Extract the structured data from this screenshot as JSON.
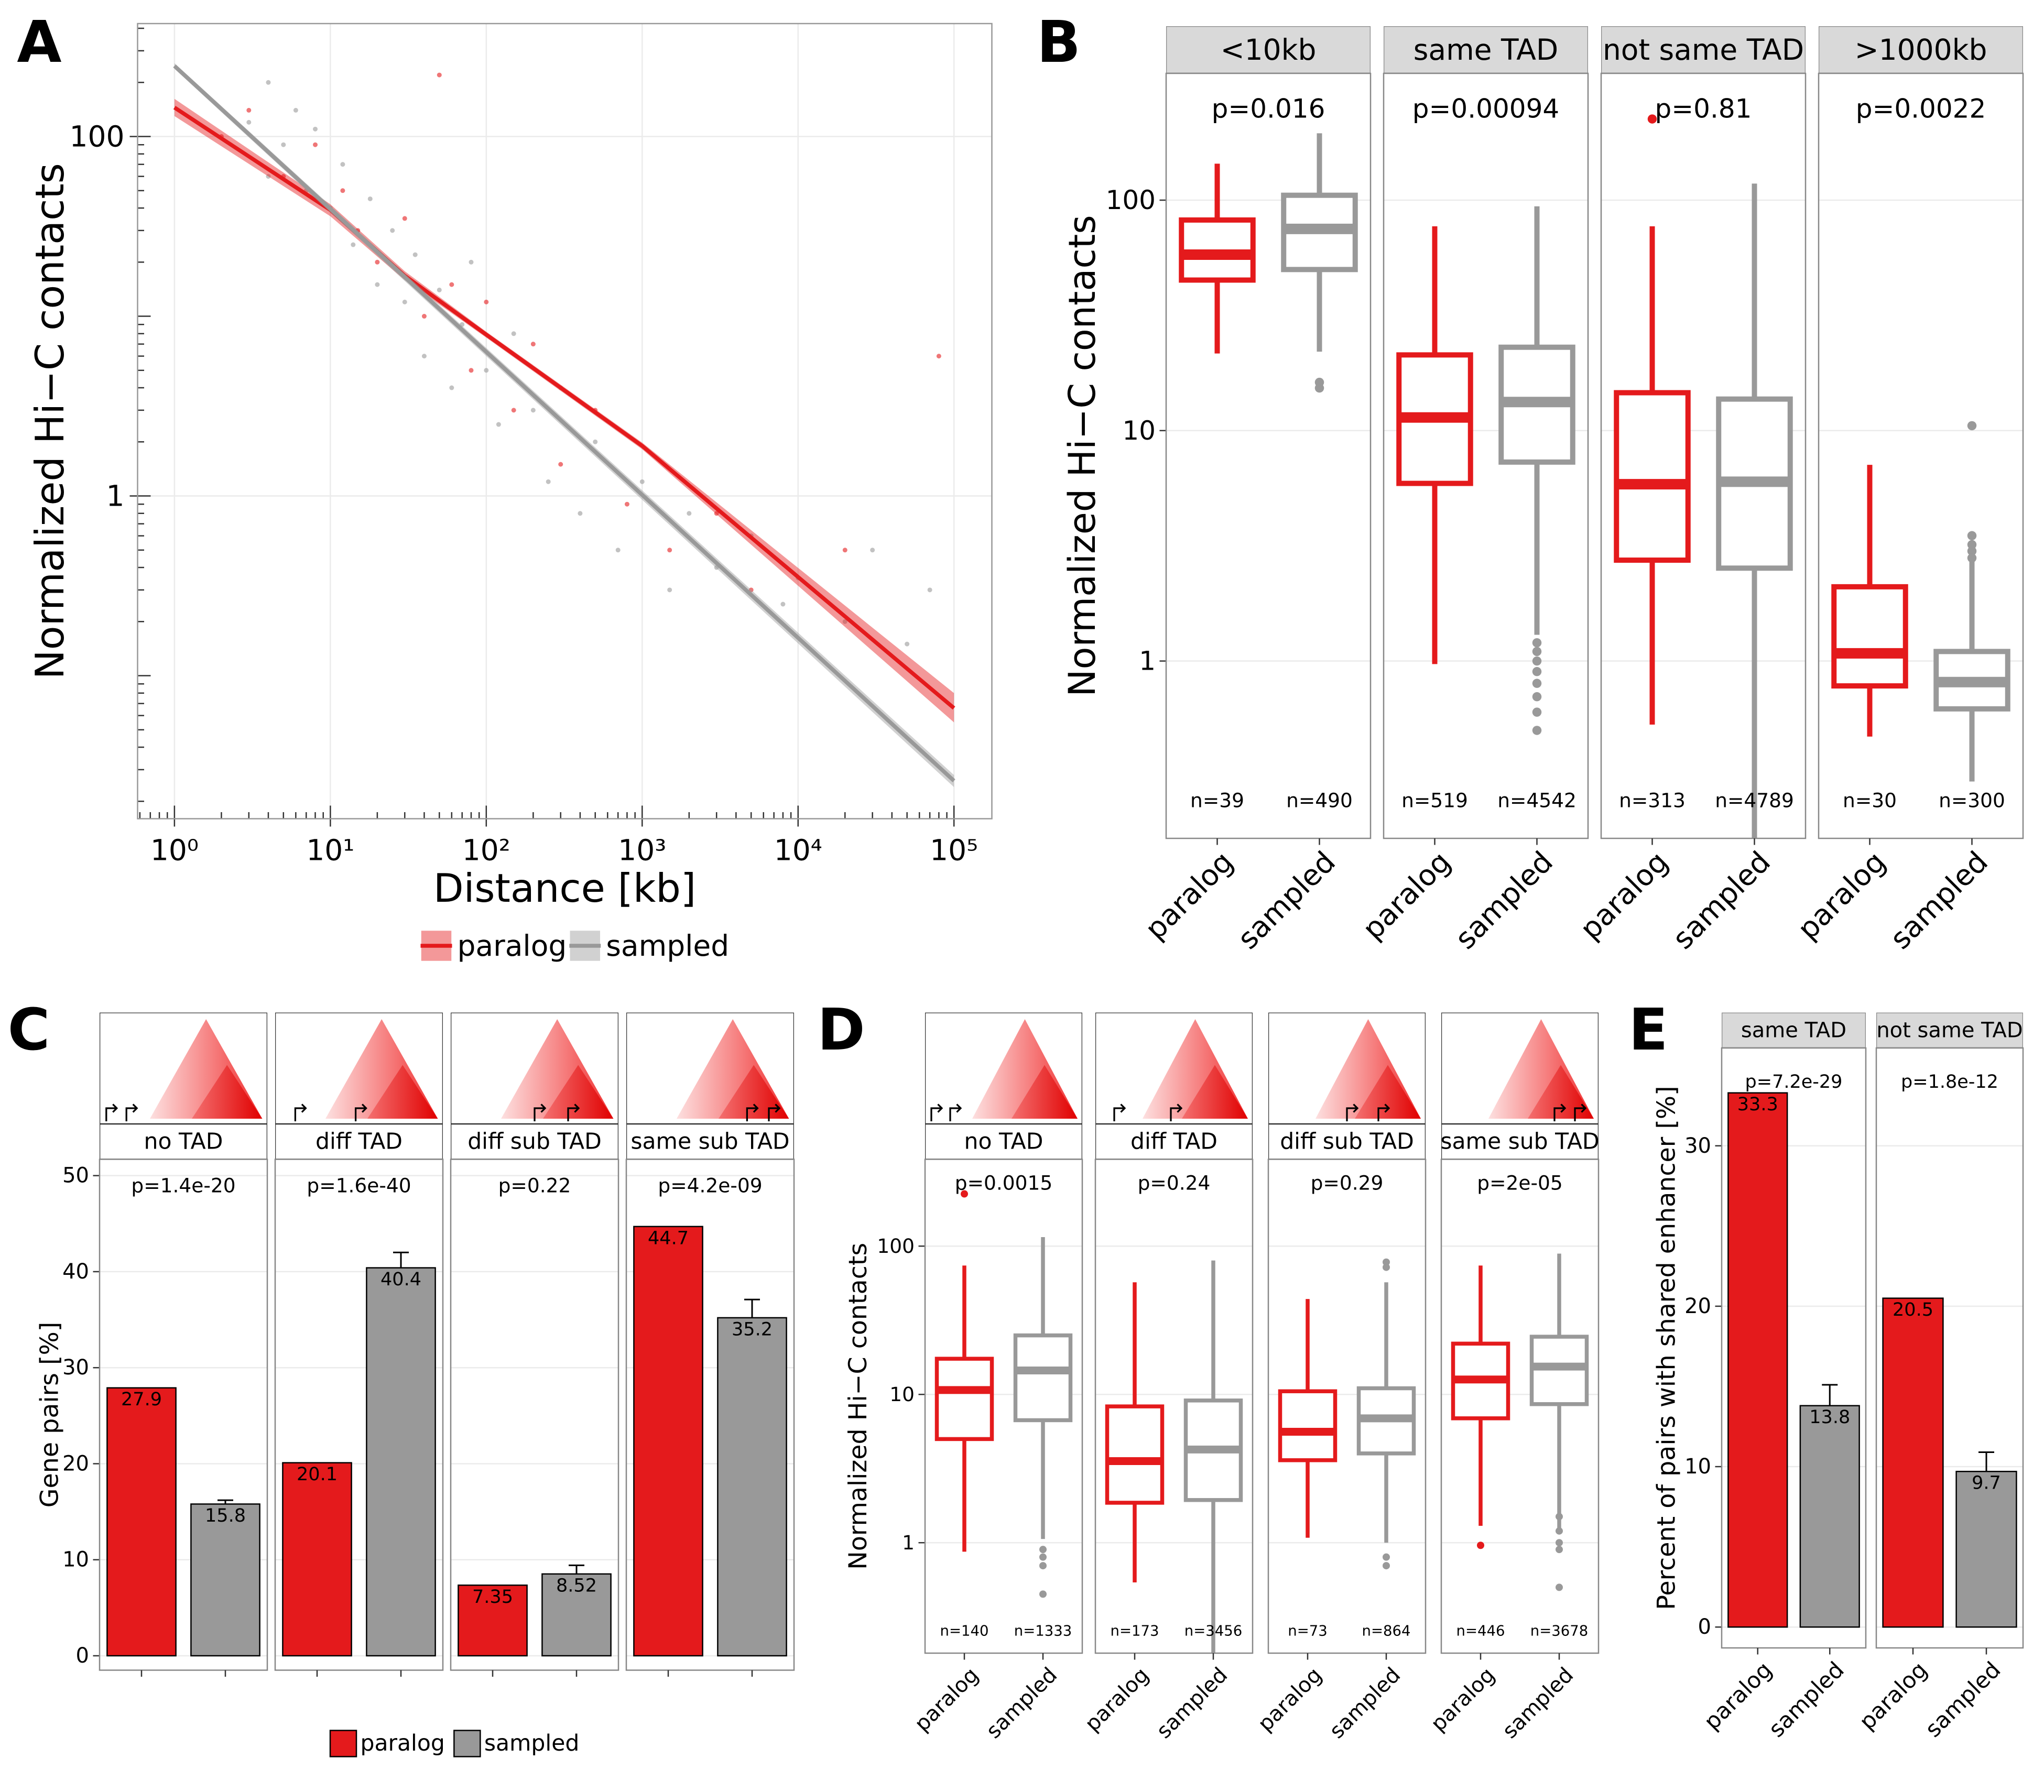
{
  "chart_data": [
    {
      "type": "scatter",
      "panel_label": "A",
      "xlabel": "Distance [kb]",
      "ylabel": "Normalized Hi−C contacts",
      "log_x": true,
      "log_y": true,
      "grid": true,
      "xlim": [
        0.58,
        175000
      ],
      "ylim": [
        0.016,
        425
      ],
      "xticks": [
        {
          "value": 1,
          "label": "10⁰"
        },
        {
          "value": 10,
          "label": "10¹"
        },
        {
          "value": 100,
          "label": "10²"
        },
        {
          "value": 1000,
          "label": "10³"
        },
        {
          "value": 10000,
          "label": "10⁴"
        },
        {
          "value": 100000,
          "label": "10⁵"
        }
      ],
      "yticks": [
        1,
        100
      ],
      "legend": "bottom",
      "series": [
        {
          "name": "paralog",
          "color": "#e41a1c",
          "fit_x": [
            1,
            10,
            30,
            100,
            1000,
            100000
          ],
          "fit_values": [
            145,
            39,
            16.8,
            7.9,
            1.9,
            0.066
          ],
          "band_low": [
            130,
            36,
            15.9,
            7.6,
            1.82,
            0.055
          ],
          "band_high": [
            162,
            42,
            17.8,
            8.2,
            1.98,
            0.08
          ],
          "x": [
            2,
            3,
            5,
            8,
            12,
            15,
            20,
            30,
            40,
            50,
            60,
            80,
            100,
            150,
            200,
            300,
            500,
            800,
            1500,
            3000,
            5000,
            20000,
            80000
          ],
          "values": [
            100,
            140,
            60,
            90,
            50,
            30,
            20,
            35,
            10,
            220,
            15,
            5,
            12,
            3,
            7,
            1.5,
            3,
            0.9,
            0.5,
            0.8,
            0.3,
            0.5,
            6
          ]
        },
        {
          "name": "sampled",
          "color": "#999999",
          "fit_x": [
            1,
            100000
          ],
          "fit_values": [
            247,
            0.026
          ],
          "band_low": [
            238,
            0.024
          ],
          "band_high": [
            256,
            0.028
          ],
          "x": [
            3,
            4,
            4,
            5,
            6,
            7,
            8,
            10,
            12,
            14,
            18,
            20,
            25,
            30,
            35,
            40,
            50,
            60,
            70,
            80,
            100,
            120,
            150,
            200,
            250,
            300,
            400,
            500,
            700,
            1000,
            1500,
            2000,
            3000,
            5000,
            8000,
            10000,
            20000,
            30000,
            50000,
            70000
          ],
          "values": [
            120,
            60,
            200,
            90,
            140,
            50,
            110,
            40,
            70,
            25,
            45,
            15,
            30,
            12,
            22,
            6,
            14,
            4,
            9,
            20,
            5,
            2.5,
            8,
            3,
            1.2,
            4,
            0.8,
            2,
            0.5,
            1.2,
            0.3,
            0.8,
            0.4,
            0.6,
            0.25,
            0.35,
            0.2,
            0.5,
            0.15,
            0.3
          ]
        }
      ]
    },
    {
      "type": "box",
      "panel_label": "B",
      "ylabel": "Normalized Hi−C contacts",
      "log_y": true,
      "grid": true,
      "ylim": [
        0.17,
        355
      ],
      "yticks": [
        1,
        10,
        100
      ],
      "x_labels": true,
      "series": [
        {
          "name": "paralog",
          "color": "#e41a1c"
        },
        {
          "name": "sampled",
          "color": "#999999"
        }
      ],
      "facets": [
        {
          "name": "<10kb",
          "p_label": "p=0.016",
          "boxes": [
            {
              "whislo": 21.6,
              "q1": 45,
              "med": 58,
              "q3": 82,
              "whishi": 144,
              "outliers": [],
              "n_label": "n=39"
            },
            {
              "whislo": 22,
              "q1": 50,
              "med": 75,
              "q3": 105,
              "whishi": 195,
              "outliers": [
                16.2,
                15.3
              ],
              "n_label": "n=490"
            }
          ]
        },
        {
          "name": "same TAD",
          "p_label": "p=0.00094",
          "boxes": [
            {
              "whislo": 0.97,
              "q1": 5.9,
              "med": 11.4,
              "q3": 21.3,
              "whishi": 77,
              "outliers": [],
              "n_label": "n=519"
            },
            {
              "whislo": 1.3,
              "q1": 7.3,
              "med": 13.3,
              "q3": 23,
              "whishi": 94,
              "outliers": [
                1.2,
                1.1,
                1.0,
                0.9,
                0.8,
                0.7,
                0.6,
                0.5
              ],
              "n_label": "n=4542"
            }
          ]
        },
        {
          "name": "not same TAD",
          "p_label": "p=0.81",
          "boxes": [
            {
              "whislo": 0.53,
              "q1": 2.74,
              "med": 5.85,
              "q3": 14.6,
              "whishi": 77,
              "outliers": [
                225
              ],
              "n_label": "n=313"
            },
            {
              "whislo": 0.17,
              "q1": 2.53,
              "med": 6.0,
              "q3": 13.7,
              "whishi": 118,
              "outliers": [],
              "n_label": "n=4789"
            }
          ]
        },
        {
          "name": ">1000kb",
          "p_label": "p=0.0022",
          "boxes": [
            {
              "whislo": 0.47,
              "q1": 0.78,
              "med": 1.08,
              "q3": 2.1,
              "whishi": 7.1,
              "outliers": [],
              "n_label": "n=30"
            },
            {
              "whislo": 0.3,
              "q1": 0.62,
              "med": 0.81,
              "q3": 1.1,
              "whishi": 3.3,
              "outliers": [
                10.5,
                3.5,
                3.2,
                3.0,
                2.8
              ],
              "n_label": "n=300"
            }
          ]
        }
      ]
    },
    {
      "type": "bar",
      "panel_label": "C",
      "ylabel": "Gene pairs [%]",
      "grid": true,
      "ylim": [
        -1.5,
        51.7
      ],
      "yticks": [
        0,
        10,
        20,
        30,
        40,
        50
      ],
      "x_labels": false,
      "legend": "bottom",
      "tad_icons": true,
      "series": [
        {
          "name": "paralog",
          "color": "#e41a1c"
        },
        {
          "name": "sampled",
          "color": "#999999"
        }
      ],
      "facets": [
        {
          "name": "no TAD",
          "p_label": "p=1.4e-20",
          "values": [
            27.9,
            15.8
          ],
          "errors": [
            null,
            0.4
          ]
        },
        {
          "name": "diff TAD",
          "p_label": "p=1.6e-40",
          "values": [
            20.1,
            40.4
          ],
          "errors": [
            null,
            1.6
          ]
        },
        {
          "name": "diff sub TAD",
          "p_label": "p=0.22",
          "values": [
            7.35,
            8.52
          ],
          "errors": [
            null,
            0.9
          ]
        },
        {
          "name": "same sub TAD",
          "p_label": "p=4.2e-09",
          "values": [
            44.7,
            35.2
          ],
          "errors": [
            null,
            1.9
          ]
        }
      ]
    },
    {
      "type": "box",
      "panel_label": "D",
      "ylabel": "Normalized Hi−C contacts",
      "log_y": true,
      "grid": true,
      "ylim": [
        0.18,
        385
      ],
      "yticks": [
        1,
        10,
        100
      ],
      "x_labels": true,
      "tad_icons": true,
      "series": [
        {
          "name": "paralog",
          "color": "#e41a1c"
        },
        {
          "name": "sampled",
          "color": "#999999"
        }
      ],
      "facets": [
        {
          "name": "no TAD",
          "p_label": "p=0.0015",
          "boxes": [
            {
              "whislo": 0.87,
              "q1": 5,
              "med": 10.7,
              "q3": 17.4,
              "whishi": 74,
              "outliers": [
                225
              ],
              "n_label": "n=140"
            },
            {
              "whislo": 1.06,
              "q1": 6.7,
              "med": 14.5,
              "q3": 25,
              "whishi": 115,
              "outliers": [
                0.9,
                0.8,
                0.7,
                0.45
              ],
              "n_label": "n=1333"
            }
          ]
        },
        {
          "name": "diff TAD",
          "p_label": "p=0.24",
          "boxes": [
            {
              "whislo": 0.54,
              "q1": 1.86,
              "med": 3.55,
              "q3": 8.3,
              "whishi": 57,
              "outliers": [],
              "n_label": "n=173"
            },
            {
              "whislo": 0.18,
              "q1": 1.94,
              "med": 4.25,
              "q3": 9.1,
              "whishi": 80,
              "outliers": [],
              "n_label": "n=3456"
            }
          ]
        },
        {
          "name": "diff sub TAD",
          "p_label": "p=0.29",
          "boxes": [
            {
              "whislo": 1.08,
              "q1": 3.6,
              "med": 5.6,
              "q3": 10.5,
              "whishi": 44,
              "outliers": [],
              "n_label": "n=73"
            },
            {
              "whislo": 1.0,
              "q1": 4.0,
              "med": 6.9,
              "q3": 11,
              "whishi": 57,
              "outliers": [
                78,
                72,
                0.8,
                0.7
              ],
              "n_label": "n=864"
            }
          ]
        },
        {
          "name": "same sub TAD",
          "p_label": "p=2e-05",
          "boxes": [
            {
              "whislo": 1.3,
              "q1": 6.9,
              "med": 12.6,
              "q3": 22,
              "whishi": 74,
              "outliers": [
                0.96
              ],
              "n_label": "n=446"
            },
            {
              "whislo": 1.25,
              "q1": 8.6,
              "med": 15.4,
              "q3": 24.5,
              "whishi": 89,
              "outliers": [
                1.5,
                1.2,
                1.0,
                0.9,
                0.5
              ],
              "n_label": "n=3678"
            }
          ]
        }
      ]
    },
    {
      "type": "bar",
      "panel_label": "E",
      "ylabel": "Percent of pairs with shared enhancer  [%]",
      "grid": true,
      "ylim": [
        -1.3,
        36.1
      ],
      "yticks": [
        0,
        10,
        20,
        30
      ],
      "x_labels": true,
      "series": [
        {
          "name": "paralog",
          "color": "#e41a1c"
        },
        {
          "name": "sampled",
          "color": "#999999"
        }
      ],
      "facets": [
        {
          "name": "same TAD",
          "p_label": "p=7.2e-29",
          "values": [
            33.3,
            13.8
          ],
          "errors": [
            null,
            1.3
          ]
        },
        {
          "name": "not same TAD",
          "p_label": "p=1.8e-12",
          "values": [
            20.5,
            9.7
          ],
          "errors": [
            null,
            1.2
          ]
        }
      ]
    }
  ]
}
